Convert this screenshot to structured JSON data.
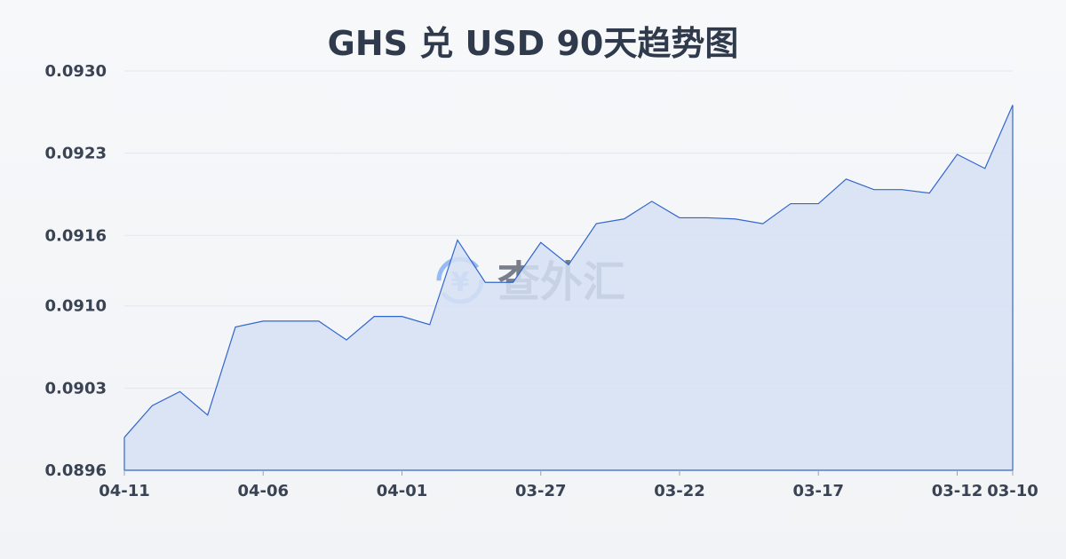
{
  "chart_data": {
    "type": "area",
    "title": "GHS 兑 USD 90天趋势图",
    "xlabel": "",
    "ylabel": "",
    "ylim": [
      0.0896,
      0.093
    ],
    "yticks": [
      "0.0930",
      "0.0923",
      "0.0916",
      "0.0910",
      "0.0903",
      "0.0896"
    ],
    "xticks": [
      "04-11",
      "04-06",
      "04-01",
      "03-27",
      "03-22",
      "03-17",
      "03-12",
      "03-10"
    ],
    "grid": true,
    "colors": {
      "line": "#3366cc",
      "fill": "#d6e0f5"
    },
    "x": [
      "04-11",
      "04-10",
      "04-09",
      "04-08",
      "04-07",
      "04-06",
      "04-05",
      "04-04",
      "04-03",
      "04-02",
      "04-01",
      "03-31",
      "03-30",
      "03-29",
      "03-28",
      "03-27",
      "03-26",
      "03-25",
      "03-24",
      "03-23",
      "03-22",
      "03-21",
      "03-20",
      "03-19",
      "03-18",
      "03-17",
      "03-16",
      "03-15",
      "03-14",
      "03-13",
      "03-12",
      "03-11",
      "03-10"
    ],
    "values": [
      0.08988,
      0.09015,
      0.09027,
      0.09007,
      0.09082,
      0.09087,
      0.09087,
      0.09087,
      0.09071,
      0.09091,
      0.09091,
      0.09084,
      0.09156,
      0.0912,
      0.0912,
      0.09154,
      0.09135,
      0.0917,
      0.09174,
      0.09189,
      0.09175,
      0.09175,
      0.09174,
      0.0917,
      0.09187,
      0.09187,
      0.09208,
      0.09199,
      0.09199,
      0.09196,
      0.09229,
      0.09217,
      0.09271
    ]
  },
  "watermark": {
    "text": "查外汇",
    "icon": "yen-exchange-icon"
  }
}
